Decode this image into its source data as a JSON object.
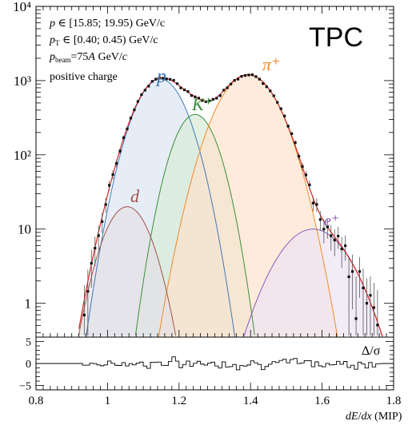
{
  "chart_data": {
    "type": "area",
    "xlabel": "dE/dx (MIP)",
    "experiment_label": "TPC",
    "info_lines": [
      "p ∈ [15.85; 19.95) GeV/c",
      "p_T ∈ [0.40; 0.45) GeV/c",
      "p_beam=75A GeV/c",
      "positive charge"
    ],
    "xlim": [
      0.8,
      1.8
    ],
    "x_ticks": [
      "0.8",
      "1",
      "1.2",
      "1.4",
      "1.6",
      "1.8"
    ],
    "x_tick_values": [
      0.8,
      1.0,
      1.2,
      1.4,
      1.6,
      1.8
    ],
    "ylim_log": [
      0.35,
      10000
    ],
    "y_ticks": [
      "10⁴",
      "10³",
      "10²",
      "10",
      "1"
    ],
    "y_tick_values": [
      10000,
      1000,
      100,
      10,
      1
    ],
    "residual_panel": {
      "label": "Δ/σ",
      "ylim": [
        -6,
        6
      ],
      "y_ticks": [
        "5",
        "0",
        "−5"
      ],
      "y_tick_values": [
        5,
        0,
        -5
      ]
    },
    "series": [
      {
        "name": "p",
        "mu": 1.148,
        "sigma": 0.052,
        "peak": 1050,
        "color": "#3f78b8",
        "fill": "#dbe6f3"
      },
      {
        "name": "K⁺",
        "mu": 1.245,
        "sigma": 0.045,
        "peak": 350,
        "color": "#3a8f3a",
        "fill": "#d8ebd6"
      },
      {
        "name": "π⁺",
        "mu": 1.393,
        "sigma": 0.062,
        "peak": 1200,
        "color": "#f08a28",
        "fill": "#fde3cc"
      },
      {
        "name": "d",
        "mu": 1.055,
        "sigma": 0.048,
        "peak": 20,
        "color": "#a0544a",
        "fill": "#e4e0e6"
      },
      {
        "name": "e⁺",
        "mu": 1.575,
        "sigma": 0.075,
        "peak": 10,
        "color": "#8c5bb8",
        "fill": "#ece4f4"
      }
    ],
    "colors": {
      "sum_fit": "#d62728",
      "data_points": "#111111"
    }
  }
}
